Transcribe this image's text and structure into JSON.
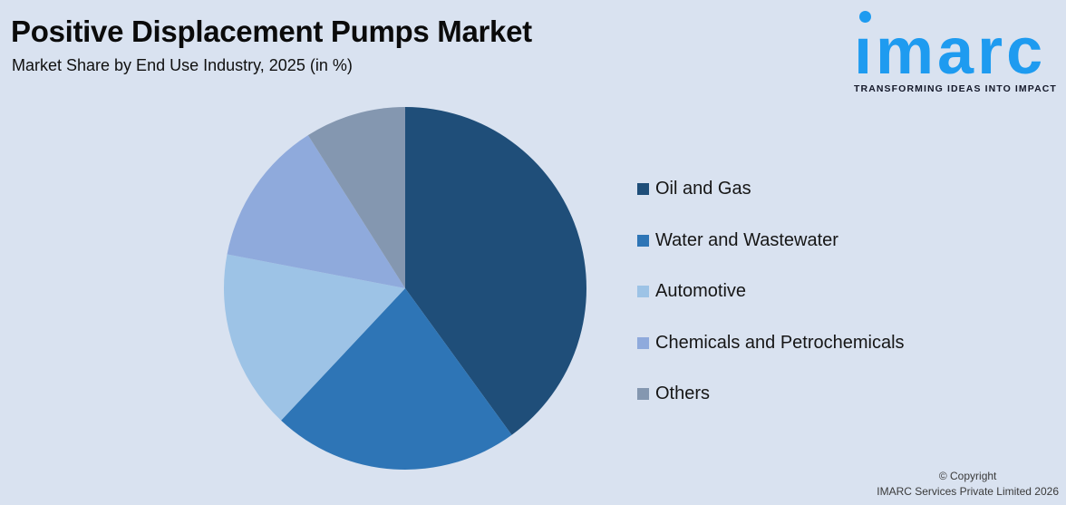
{
  "header": {
    "title": "Positive Displacement Pumps Market",
    "subtitle": "Market Share by End Use Industry, 2025 (in %)"
  },
  "logo": {
    "brand": "imarc",
    "brand_display": "ımarc",
    "tagline": "TRANSFORMING IDEAS INTO IMPACT",
    "brand_color": "#1E9BF0"
  },
  "chart_data": {
    "type": "pie",
    "title": "Positive Displacement Pumps Market",
    "subtitle": "Market Share by End Use Industry, 2025 (in %)",
    "unit": "%",
    "categories": [
      "Oil and Gas",
      "Water and Wastewater",
      "Automotive",
      "Chemicals and Petrochemicals",
      "Others"
    ],
    "values": [
      40,
      22,
      16,
      13,
      9
    ],
    "colors": [
      "#1F4E79",
      "#2E75B6",
      "#9DC3E6",
      "#8FAADC",
      "#8497B0"
    ],
    "start_angle_deg": 0,
    "direction": "clockwise",
    "legend_position": "right",
    "data_labels": false,
    "background_color": "#D9E2F0"
  },
  "footer": {
    "copyright_line1": "© Copyright",
    "copyright_line2": "IMARC Services Private Limited 2026"
  }
}
